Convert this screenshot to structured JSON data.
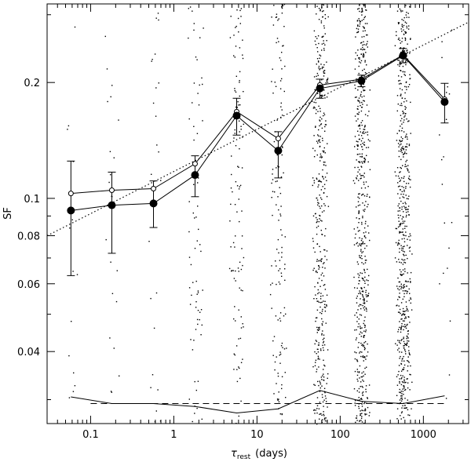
{
  "chart_data": {
    "type": "scatter",
    "x_scale": "log",
    "y_scale": "log",
    "xlim": [
      0.03,
      3500
    ],
    "ylim": [
      0.026,
      0.32
    ],
    "x_ticks": [
      {
        "value": 0.1,
        "label": "0.1"
      },
      {
        "value": 1,
        "label": "1"
      },
      {
        "value": 10,
        "label": "10"
      },
      {
        "value": 100,
        "label": "100"
      },
      {
        "value": 1000,
        "label": "1000"
      }
    ],
    "y_ticks": [
      {
        "value": 0.04,
        "label": "0.04"
      },
      {
        "value": 0.06,
        "label": "0.06"
      },
      {
        "value": 0.08,
        "label": "0.08"
      },
      {
        "value": 0.1,
        "label": "0.1"
      },
      {
        "value": 0.2,
        "label": "0.2"
      }
    ],
    "xlabel_symbol": "τ",
    "xlabel_sub": "rest",
    "xlabel_units": "(days)",
    "ylabel": "SF",
    "binned_sf": {
      "x": [
        0.058,
        0.18,
        0.57,
        1.8,
        5.7,
        18,
        57,
        180,
        570,
        1800
      ],
      "y": [
        0.093,
        0.096,
        0.097,
        0.115,
        0.164,
        0.133,
        0.193,
        0.202,
        0.235,
        0.178
      ],
      "err_low": [
        0.063,
        0.072,
        0.084,
        0.101,
        0.146,
        0.113,
        0.182,
        0.195,
        0.225,
        0.157
      ],
      "err_high": [
        0.125,
        0.117,
        0.111,
        0.129,
        0.182,
        0.149,
        0.204,
        0.209,
        0.245,
        0.199
      ]
    },
    "corrected_sf": {
      "x": [
        0.058,
        0.18,
        0.57,
        1.8,
        5.7,
        18,
        57,
        180,
        570,
        1800
      ],
      "y": [
        0.103,
        0.105,
        0.106,
        0.123,
        0.168,
        0.143,
        0.197,
        0.204,
        0.236,
        0.181
      ]
    },
    "power_law_fit": {
      "x": [
        0.03,
        3500
      ],
      "y": [
        0.08,
        0.287
      ]
    },
    "noise_curve": {
      "x": [
        0.058,
        0.18,
        0.57,
        1.8,
        5.7,
        18,
        57,
        180,
        570,
        1800
      ],
      "y": [
        0.0305,
        0.0293,
        0.0293,
        0.0288,
        0.0277,
        0.0284,
        0.0317,
        0.0297,
        0.0293,
        0.0307
      ]
    },
    "noise_level": {
      "x": [
        0.1,
        1800
      ],
      "y": [
        0.0293,
        0.0293
      ]
    },
    "background_pairs": {
      "bin_centers": [
        0.058,
        0.18,
        0.57,
        1.8,
        5.7,
        18,
        57,
        180,
        570,
        1800
      ],
      "counts_per_bin": [
        14,
        22,
        24,
        70,
        110,
        140,
        420,
        560,
        620,
        20
      ]
    }
  }
}
